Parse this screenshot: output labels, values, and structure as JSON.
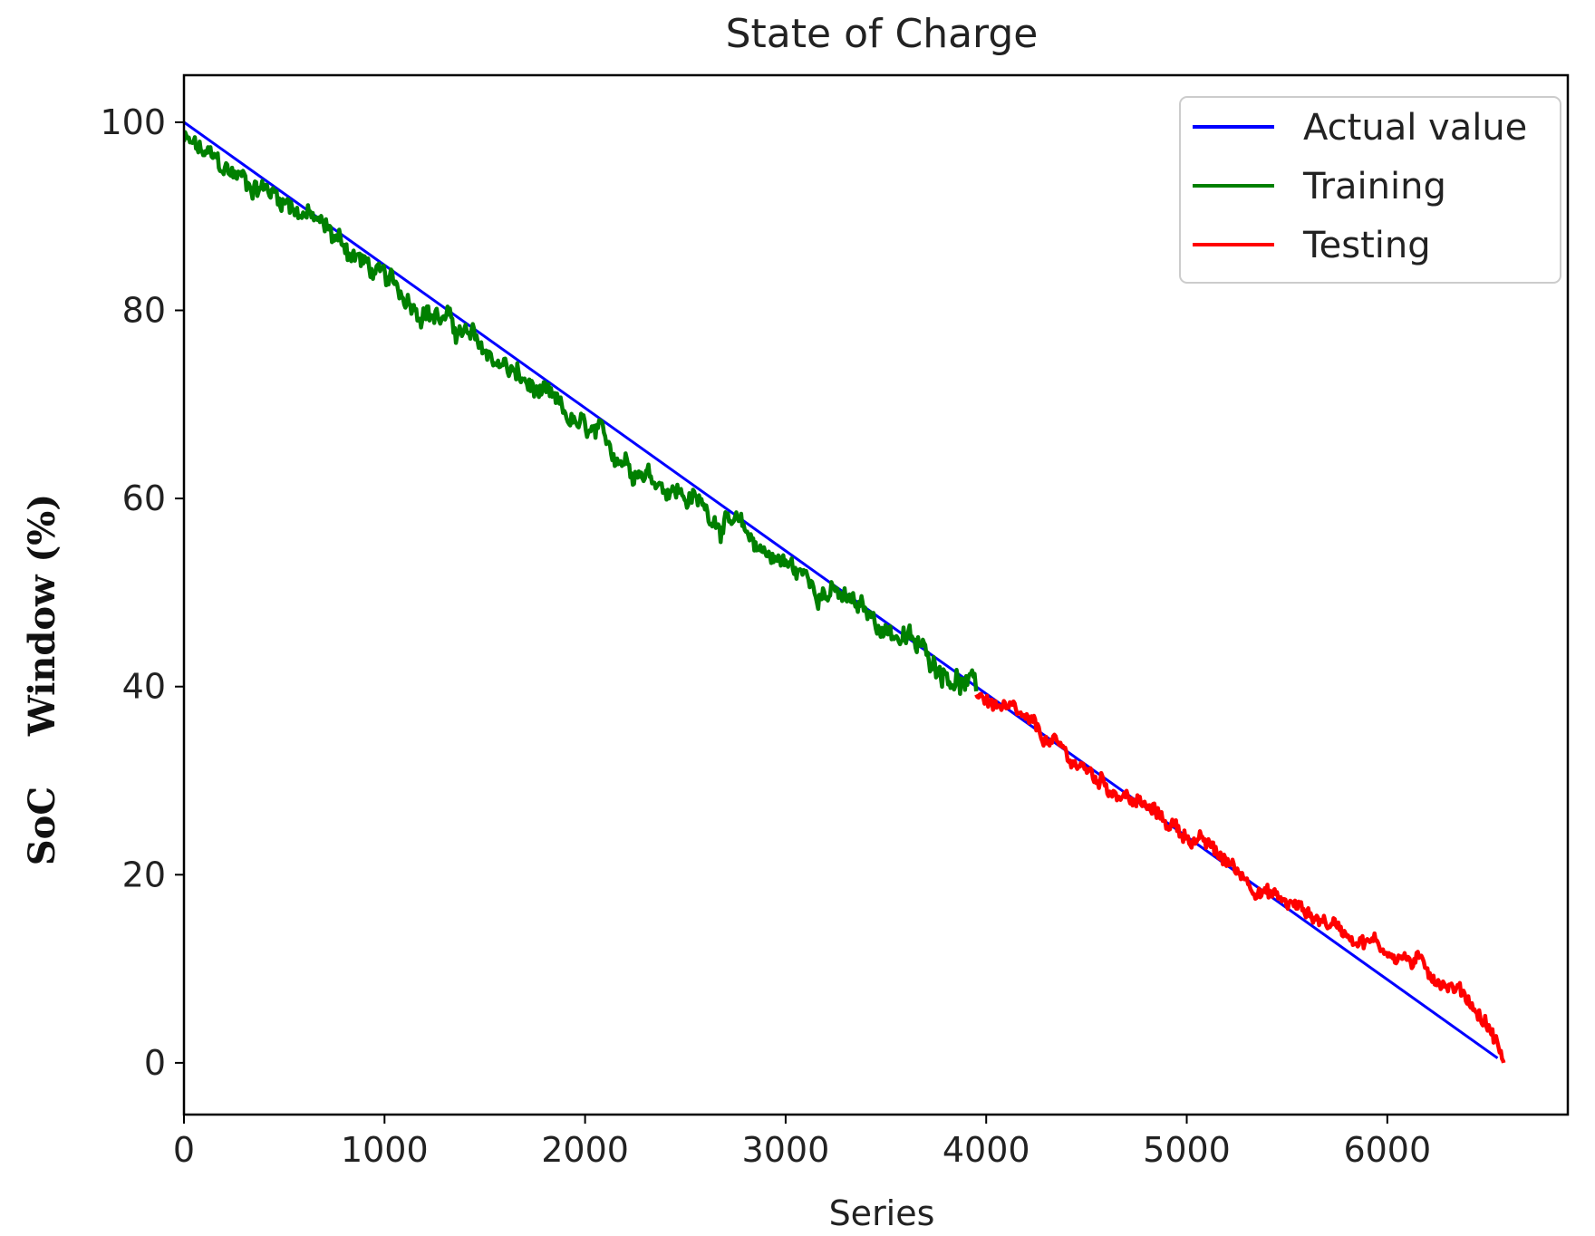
{
  "chart_data": {
    "type": "line",
    "title": "State of Charge",
    "xlabel": "Series",
    "ylabel": "SoC    Window (%)",
    "xlim": [
      0,
      6900
    ],
    "ylim": [
      -5.5,
      105
    ],
    "xticks": [
      0,
      1000,
      2000,
      3000,
      4000,
      5000,
      6000
    ],
    "yticks": [
      0,
      20,
      40,
      60,
      80,
      100
    ],
    "xtick_labels": [
      "0",
      "1000",
      "2000",
      "3000",
      "4000",
      "5000",
      "6000"
    ],
    "ytick_labels": [
      "0",
      "20",
      "40",
      "60",
      "80",
      "100"
    ],
    "grid": false,
    "legend_position": "top-right",
    "series": [
      {
        "name": "Actual value",
        "color": "#0000ff",
        "x": [
          0,
          6550
        ],
        "y": [
          100,
          0.5
        ]
      },
      {
        "name": "Training",
        "color": "#008000",
        "x": [
          0,
          200,
          500,
          800,
          1000,
          1300,
          1600,
          2000,
          2300,
          2600,
          3000,
          3300,
          3600,
          3950
        ],
        "y": [
          98,
          95,
          92,
          87,
          83,
          79,
          74,
          67,
          63,
          59,
          53,
          49,
          45,
          39.5
        ]
      },
      {
        "name": "Testing",
        "color": "#ff0000",
        "x": [
          3950,
          4200,
          4500,
          4800,
          5100,
          5400,
          5700,
          6000,
          6200,
          6400,
          6500,
          6550,
          6580
        ],
        "y": [
          39.5,
          36,
          31,
          27,
          23,
          18,
          15,
          12,
          10,
          7,
          4,
          2,
          0
        ]
      }
    ]
  }
}
